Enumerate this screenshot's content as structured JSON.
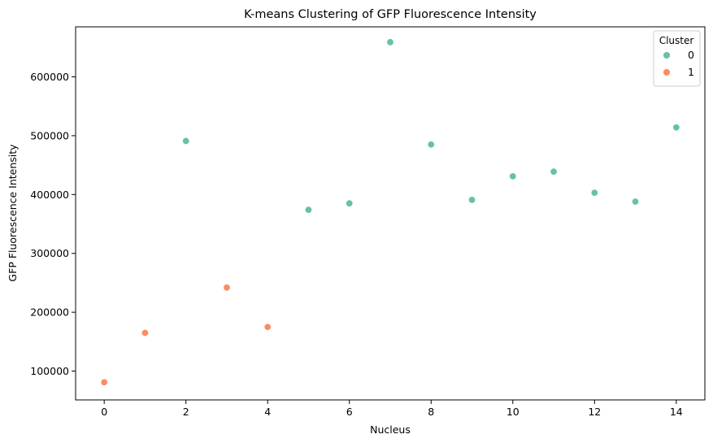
{
  "chart_data": {
    "type": "scatter",
    "title": "K-means Clustering of GFP Fluorescence Intensity",
    "xlabel": "Nucleus",
    "ylabel": "GFP Fluorescence Intensity",
    "xlim": [
      -0.7,
      14.7
    ],
    "ylim": [
      51000,
      685000
    ],
    "xticks": [
      0,
      2,
      4,
      6,
      8,
      10,
      12,
      14
    ],
    "yticks": [
      100000,
      200000,
      300000,
      400000,
      500000,
      600000
    ],
    "legend": {
      "title": "Cluster",
      "position": "top-right"
    },
    "series": [
      {
        "name": "0",
        "color": "#66c2a5",
        "points": [
          {
            "x": 2,
            "y": 491000
          },
          {
            "x": 5,
            "y": 374000
          },
          {
            "x": 6,
            "y": 385000
          },
          {
            "x": 7,
            "y": 659000
          },
          {
            "x": 8,
            "y": 485000
          },
          {
            "x": 9,
            "y": 391000
          },
          {
            "x": 10,
            "y": 431000
          },
          {
            "x": 11,
            "y": 439000
          },
          {
            "x": 12,
            "y": 403000
          },
          {
            "x": 13,
            "y": 388000
          },
          {
            "x": 14,
            "y": 514000
          }
        ]
      },
      {
        "name": "1",
        "color": "#fc8d62",
        "points": [
          {
            "x": 0,
            "y": 81000
          },
          {
            "x": 1,
            "y": 165000
          },
          {
            "x": 3,
            "y": 242000
          },
          {
            "x": 4,
            "y": 175000
          }
        ]
      }
    ]
  }
}
